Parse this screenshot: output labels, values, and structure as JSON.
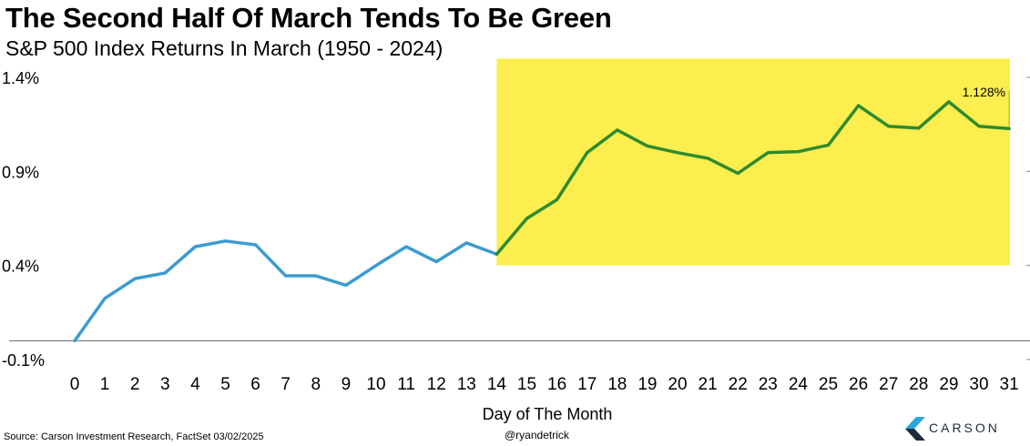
{
  "title": "The Second Half Of March Tends To Be Green",
  "subtitle": "S&P 500 Index Returns In March (1950 - 2024)",
  "footer": {
    "source": "Source: Carson Investment Research, FactSet 03/02/2025",
    "handle": "@ryandetrick",
    "brand": "CARSON"
  },
  "colors": {
    "first_half_line": "#3c9bd0",
    "second_half_line": "#2e8b2e",
    "highlight": "#fcee4f",
    "logo_accent": "#2aa6df"
  },
  "chart_data": {
    "type": "line",
    "title": "The Second Half Of March Tends To Be Green",
    "subtitle": "S&P 500 Index Returns In March (1950 - 2024)",
    "xlabel": "Day of The Month",
    "ylabel": "",
    "x": [
      0,
      1,
      2,
      3,
      4,
      5,
      6,
      7,
      8,
      9,
      10,
      11,
      12,
      13,
      14,
      15,
      16,
      17,
      18,
      19,
      20,
      21,
      22,
      23,
      24,
      25,
      26,
      27,
      28,
      29,
      30,
      31
    ],
    "values": [
      0.0,
      0.225,
      0.33,
      0.36,
      0.5,
      0.53,
      0.51,
      0.345,
      0.345,
      0.295,
      0.4,
      0.5,
      0.42,
      0.52,
      0.46,
      0.65,
      0.75,
      1.0,
      1.12,
      1.035,
      1.0,
      0.97,
      0.89,
      1.0,
      1.005,
      1.04,
      1.25,
      1.14,
      1.13,
      1.27,
      1.14,
      1.128
    ],
    "highlight_from_day": 14,
    "highlight_y_range": [
      0.4,
      1.5
    ],
    "ylim": [
      -0.1,
      1.4
    ],
    "yticks": [
      -0.1,
      0.4,
      0.9,
      1.4
    ],
    "ytick_labels": [
      "-0.1%",
      "0.4%",
      "0.9%",
      "1.4%"
    ],
    "xtick_labels": [
      "0",
      "1",
      "2",
      "3",
      "4",
      "5",
      "6",
      "7",
      "8",
      "9",
      "10",
      "11",
      "12",
      "13",
      "14",
      "15",
      "16",
      "17",
      "18",
      "19",
      "20",
      "21",
      "22",
      "23",
      "24",
      "25",
      "26",
      "27",
      "28",
      "29",
      "30",
      "31"
    ],
    "annotation": {
      "x": 31,
      "y": 1.128,
      "text": "1.128%"
    },
    "zero_line": true,
    "grid": false
  }
}
